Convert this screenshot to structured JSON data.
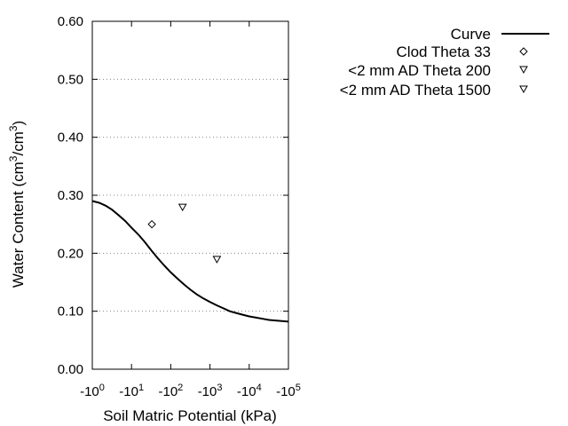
{
  "chart_data": {
    "type": "line",
    "xlabel": "Soil Matric Potential (kPa)",
    "ylabel": {
      "prefix": "Water Content (cm",
      "exp1": "3",
      "mid": "/cm",
      "exp2": "3",
      "suffix": ")"
    },
    "x_scale": "log",
    "xlim_kpa": [
      -1,
      -100000
    ],
    "ylim": [
      0,
      0.6
    ],
    "y_ticks": [
      "0.00",
      "0.10",
      "0.20",
      "0.30",
      "0.40",
      "0.50",
      "0.60"
    ],
    "x_ticks": [
      {
        "value": -1,
        "base": "-10",
        "exp": "0"
      },
      {
        "value": -10,
        "base": "-10",
        "exp": "1"
      },
      {
        "value": -100,
        "base": "-10",
        "exp": "2"
      },
      {
        "value": -1000,
        "base": "-10",
        "exp": "3"
      },
      {
        "value": -10000,
        "base": "-10",
        "exp": "4"
      },
      {
        "value": -100000,
        "base": "-10",
        "exp": "5"
      }
    ],
    "grid": "horizontal-dotted",
    "legend_position": "top-right, outside plot",
    "series": [
      {
        "name": "Curve",
        "kind": "line",
        "color": "#000000",
        "x": [
          -1,
          -1.5,
          -2.2,
          -3.2,
          -4.6,
          -6.8,
          -10,
          -15,
          -22,
          -32,
          -46,
          -68,
          -100,
          -150,
          -220,
          -320,
          -460,
          -680,
          -1000,
          -1500,
          -2200,
          -3200,
          -4600,
          -6800,
          -10000,
          -15000,
          -22000,
          -32000,
          -46000,
          -68000,
          -100000
        ],
        "y": [
          0.29,
          0.287,
          0.282,
          0.275,
          0.266,
          0.256,
          0.244,
          0.232,
          0.219,
          0.205,
          0.192,
          0.179,
          0.167,
          0.156,
          0.146,
          0.137,
          0.129,
          0.122,
          0.116,
          0.11,
          0.105,
          0.1,
          0.097,
          0.094,
          0.091,
          0.089,
          0.087,
          0.085,
          0.084,
          0.083,
          0.082
        ]
      },
      {
        "name": "Clod Theta 33",
        "kind": "scatter",
        "marker": "diamond",
        "x": [
          -33
        ],
        "y": [
          0.25
        ]
      },
      {
        "name": "<2 mm AD Theta 200",
        "kind": "scatter",
        "marker": "triangle-down",
        "x": [
          -200
        ],
        "y": [
          0.28
        ]
      },
      {
        "name": "<2 mm AD Theta 1500",
        "kind": "scatter",
        "marker": "triangle-down",
        "x": [
          -1500
        ],
        "y": [
          0.19
        ]
      }
    ]
  }
}
